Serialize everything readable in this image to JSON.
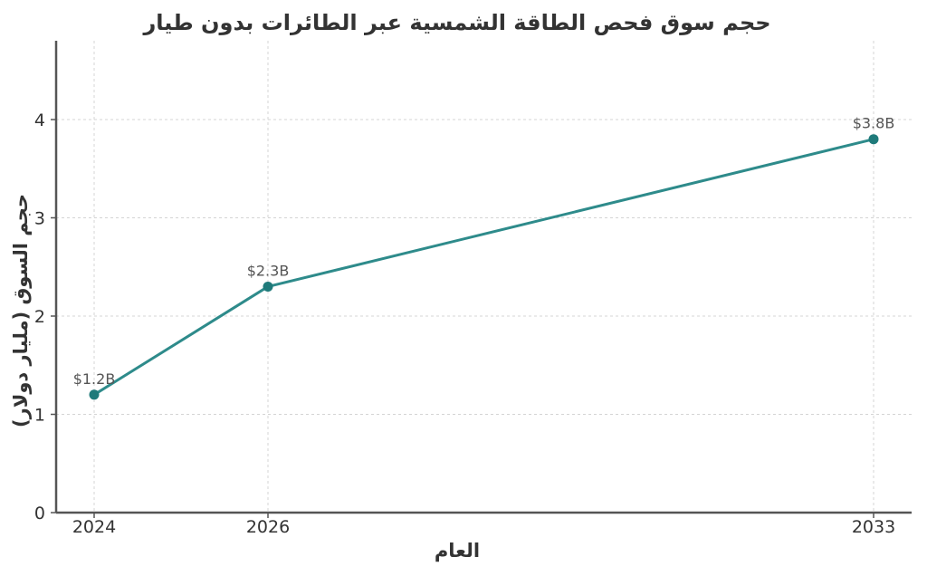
{
  "chart_data": {
    "type": "line",
    "title": "حجم سوق فحص الطاقة الشمسية عبر الطائرات بدون طيار",
    "xlabel": "العام",
    "ylabel": "حجم السوق (مليار دولار)",
    "x": [
      2024,
      2026,
      2033
    ],
    "x_ticks": [
      "2024",
      "2026",
      "2033"
    ],
    "y_ticks": [
      "0",
      "1",
      "2",
      "3",
      "4"
    ],
    "ylim": [
      0,
      4.8
    ],
    "grid": true,
    "series": [
      {
        "values": [
          1.2,
          2.3,
          3.8
        ],
        "labels": [
          "$1.2B",
          "$2.3B",
          "$3.8B"
        ],
        "color": "#2e8b8b"
      }
    ]
  }
}
